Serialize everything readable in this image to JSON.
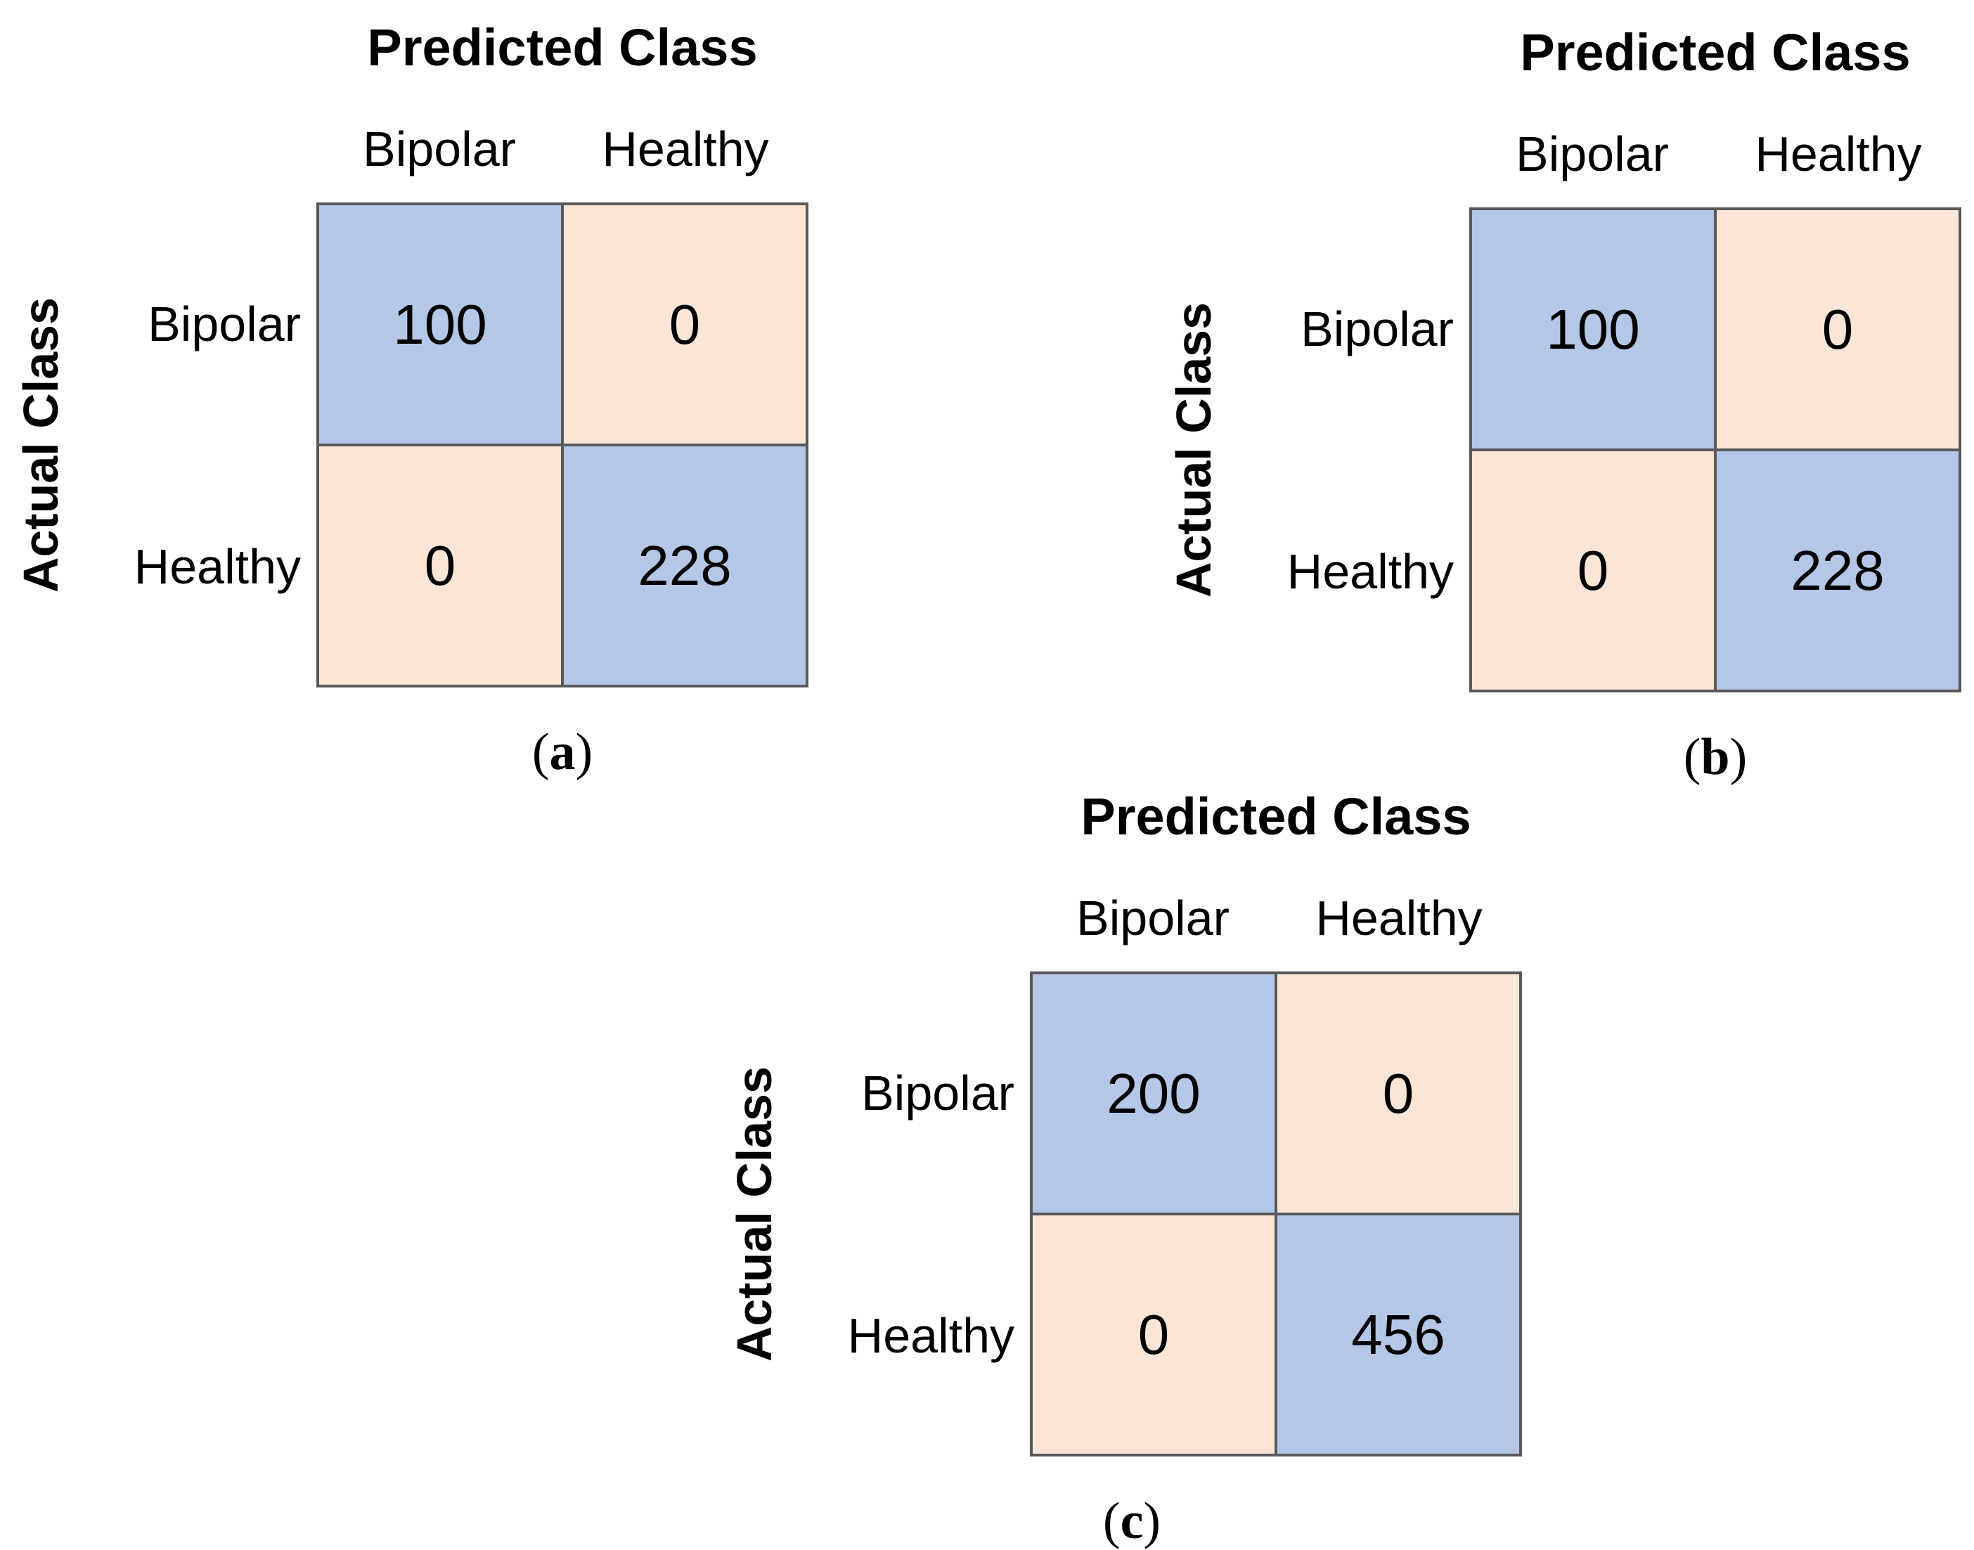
{
  "figure": {
    "description": "Three confusion matrices comparing Bipolar vs Healthy classification",
    "panels_order": [
      "a",
      "b",
      "c"
    ]
  },
  "colors": {
    "diagonal_cell": "#b4c7e7",
    "off_diagonal_cell": "#fbe5d6",
    "grid_border": "#595959",
    "text": "#000000",
    "background": "#ffffff"
  },
  "chart_data": [
    {
      "type": "heatmap",
      "panel": "a",
      "caption": {
        "prefix": "(",
        "letter": "a",
        "suffix": ")"
      },
      "title": "Predicted Class",
      "xlabel": "Predicted Class",
      "ylabel": "Actual Class",
      "x_categories": [
        "Bipolar",
        "Healthy"
      ],
      "y_categories": [
        "Bipolar",
        "Healthy"
      ],
      "matrix": [
        [
          100,
          0
        ],
        [
          0,
          228
        ]
      ],
      "cell_colors": [
        [
          "#b4c7e7",
          "#fbe5d6"
        ],
        [
          "#fbe5d6",
          "#b4c7e7"
        ]
      ],
      "legend": "none",
      "grid": "on"
    },
    {
      "type": "heatmap",
      "panel": "b",
      "caption": {
        "prefix": "(",
        "letter": "b",
        "suffix": ")"
      },
      "title": "Predicted Class",
      "xlabel": "Predicted Class",
      "ylabel": "Actual Class",
      "x_categories": [
        "Bipolar",
        "Healthy"
      ],
      "y_categories": [
        "Bipolar",
        "Healthy"
      ],
      "matrix": [
        [
          100,
          0
        ],
        [
          0,
          228
        ]
      ],
      "cell_colors": [
        [
          "#b4c7e7",
          "#fbe5d6"
        ],
        [
          "#fbe5d6",
          "#b4c7e7"
        ]
      ],
      "legend": "none",
      "grid": "on"
    },
    {
      "type": "heatmap",
      "panel": "c",
      "caption": {
        "prefix": "(",
        "letter": "c",
        "suffix": ")"
      },
      "title": "Predicted Class",
      "xlabel": "Predicted Class",
      "ylabel": "Actual Class",
      "x_categories": [
        "Bipolar",
        "Healthy"
      ],
      "y_categories": [
        "Bipolar",
        "Healthy"
      ],
      "matrix": [
        [
          200,
          0
        ],
        [
          0,
          456
        ]
      ],
      "cell_colors": [
        [
          "#b4c7e7",
          "#fbe5d6"
        ],
        [
          "#fbe5d6",
          "#b4c7e7"
        ]
      ],
      "legend": "none",
      "grid": "on"
    }
  ]
}
